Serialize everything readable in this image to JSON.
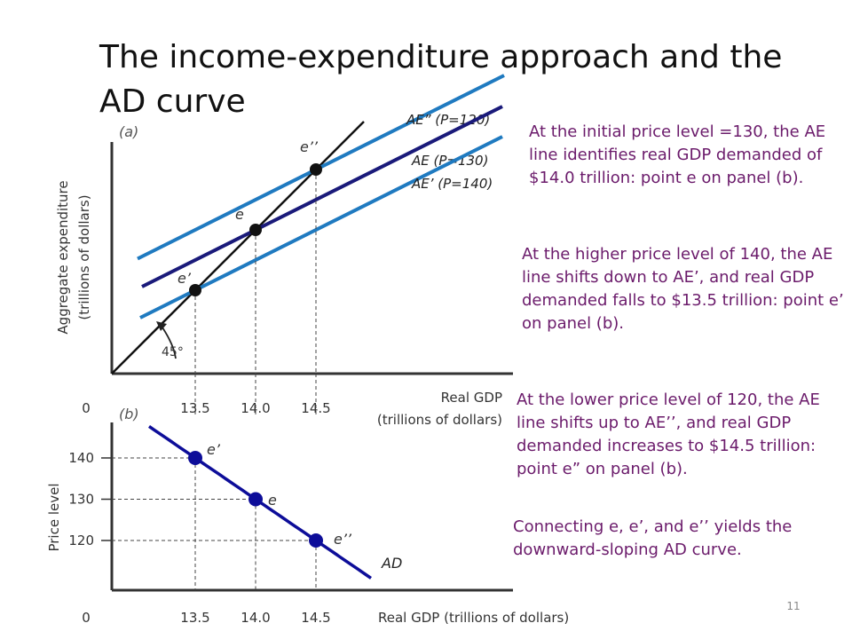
{
  "slide": {
    "title": "The income-expenditure approach and the AD curve",
    "notes": [
      "At the initial price level =130, the AE line identifies real GDP demanded of $14.0 trillion: point e on panel (b).",
      "At the higher price level of 140, the AE line shifts down to AE’, and real GDP demanded falls to $13.5 trillion: point e’ on panel (b).",
      "At the lower price level of 120, the AE line shifts up to AE’’, and real GDP demanded increases to $14.5 trillion: point e” on panel (b).",
      "Connecting e, e’, and e’’ yields the downward-sloping AD curve."
    ],
    "slide_number": "11"
  },
  "colors": {
    "ae_high": "#1f7ac0",
    "ae_mid": "#1a1a7a",
    "ad_curve": "#0d0d99",
    "note_text": "#6b1b6b"
  },
  "chart_data": [
    {
      "type": "line",
      "panel_label": "(a)",
      "xlabel": "Real GDP (trillions of dollars)",
      "xlabel_lines": [
        "Real GDP",
        "(trillions of dollars)"
      ],
      "ylabel": "Aggregate expenditure (trillions of dollars)",
      "ylabel_lines": [
        "Aggregate expenditure",
        "(trillions of dollars)"
      ],
      "x_origin_label": "0",
      "x_ticks": [
        "13.5",
        "14.0",
        "14.5"
      ],
      "angle_label": "45°",
      "series": [
        {
          "name": "AE” (P=120)",
          "color": "#1f7ac0",
          "intersects_45deg_at": 14.5
        },
        {
          "name": "AE (P=130)",
          "color": "#1a1a7a",
          "intersects_45deg_at": 14.0
        },
        {
          "name": "AE’ (P=140)",
          "color": "#1f7ac0",
          "intersects_45deg_at": 13.5
        }
      ],
      "points": [
        {
          "label": "e’’",
          "x": 14.5
        },
        {
          "label": "e",
          "x": 14.0
        },
        {
          "label": "e’",
          "x": 13.5
        }
      ]
    },
    {
      "type": "line",
      "panel_label": "(b)",
      "xlabel": "Real GDP (trillions of dollars)",
      "ylabel": "Price level",
      "x_origin_label": "0",
      "x_ticks": [
        "13.5",
        "14.0",
        "14.5"
      ],
      "y_ticks": [
        "140",
        "130",
        "120"
      ],
      "series": [
        {
          "name": "AD",
          "color": "#0d0d99"
        }
      ],
      "points": [
        {
          "label": "e’",
          "x": 13.5,
          "y": 140
        },
        {
          "label": "e",
          "x": 14.0,
          "y": 130
        },
        {
          "label": "e’’",
          "x": 14.5,
          "y": 120
        }
      ]
    }
  ]
}
